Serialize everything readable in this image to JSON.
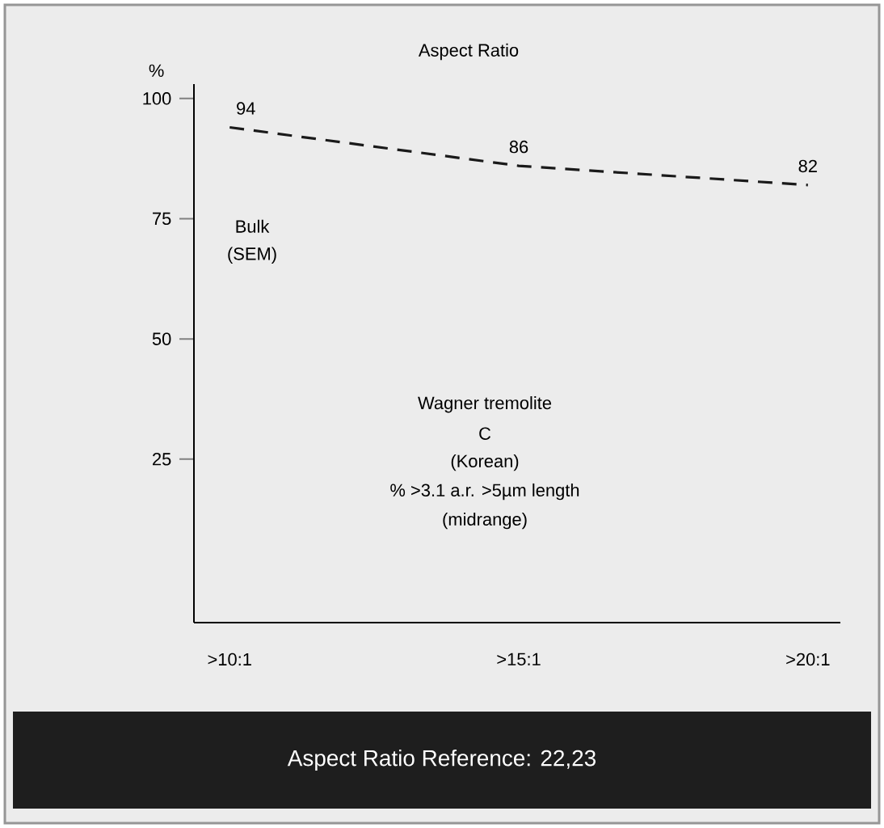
{
  "chart_data": {
    "type": "line",
    "title": "Aspect Ratio",
    "ylabel": "%",
    "categories": [
      ">10:1",
      ">15:1",
      ">20:1"
    ],
    "values": [
      94,
      86,
      82
    ],
    "color": "#1a1a1a",
    "line_style": "dashed",
    "marker": "none",
    "data_labels": true,
    "ylim": [
      -9,
      103
    ],
    "yticks": [
      25,
      50,
      75,
      100
    ],
    "annotations": [
      "Bulk",
      "(SEM)",
      "Wagner tremolite",
      "C",
      "(Korean)",
      "% >3.1 a.r. >5µm length",
      "(midrange)",
      "Aspect Ratio Reference: 22,23"
    ]
  }
}
